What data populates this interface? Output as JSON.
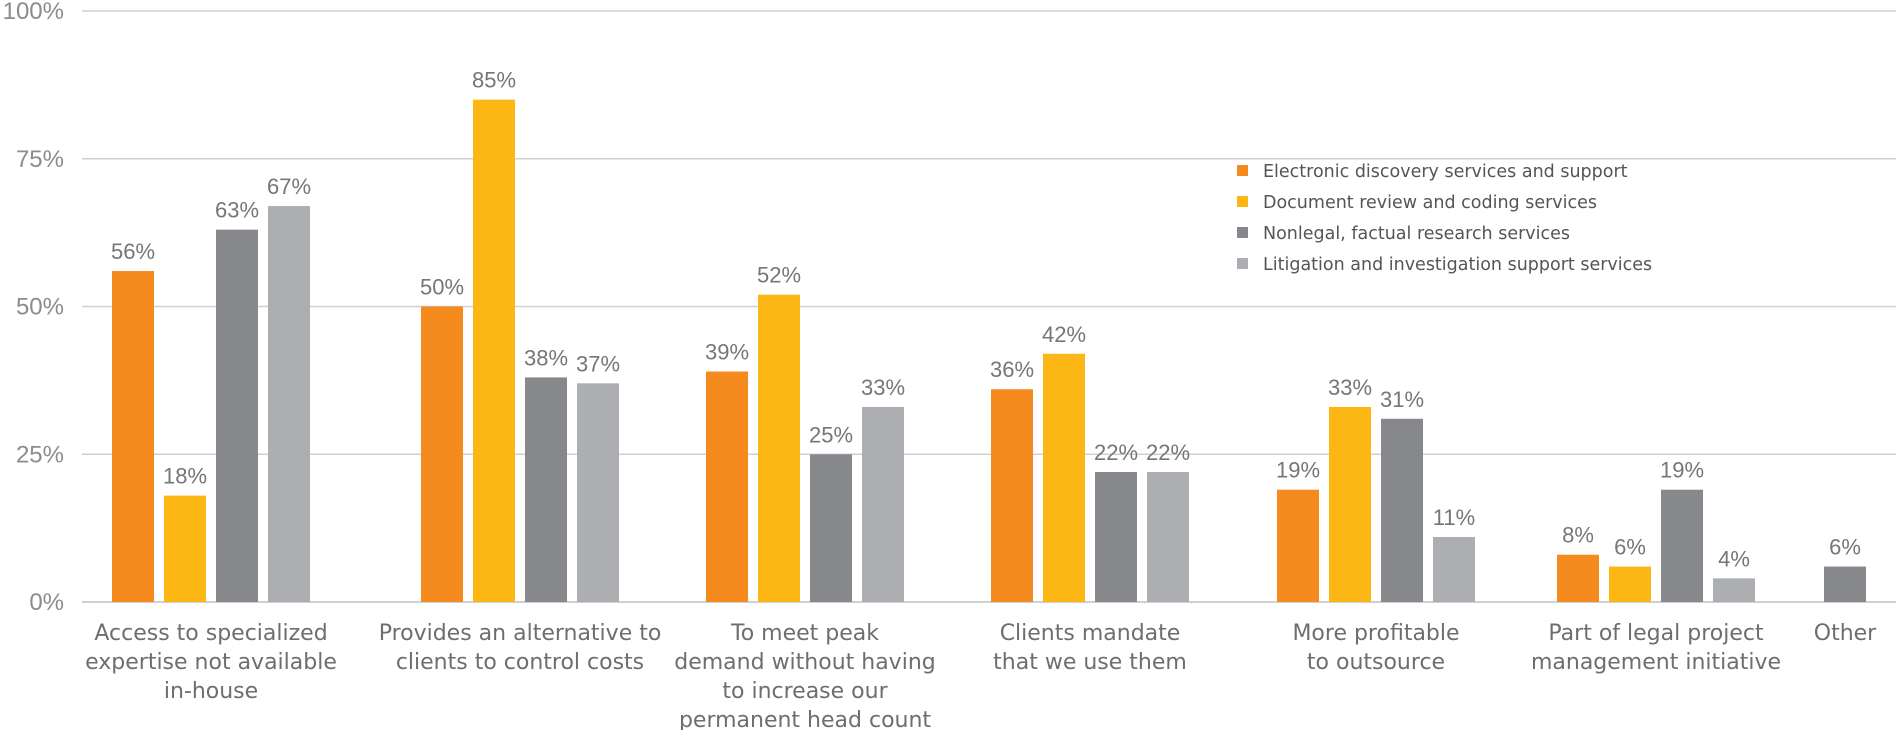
{
  "chart_data": {
    "type": "bar",
    "title": "",
    "xlabel": "",
    "ylabel": "",
    "ylim": [
      0,
      100
    ],
    "yticks": [
      0,
      25,
      50,
      75,
      100
    ],
    "ytick_labels": [
      "0%",
      "25%",
      "50%",
      "75%",
      "100%"
    ],
    "grid": true,
    "legend_position": "top-right",
    "categories": [
      [
        "Access to specialized",
        "expertise not available",
        "in-house"
      ],
      [
        "Provides an alternative to",
        "clients to control costs"
      ],
      [
        "To meet peak",
        "demand without having",
        "to increase our",
        "permanent head count"
      ],
      [
        "Clients mandate",
        "that we use them"
      ],
      [
        "More profitable",
        "to outsource"
      ],
      [
        "Part of legal project",
        "management initiative"
      ],
      [
        "Other"
      ]
    ],
    "series": [
      {
        "name": "Electronic discovery services and support",
        "color": "#f58a1f",
        "values": [
          56,
          50,
          39,
          36,
          19,
          8,
          null
        ]
      },
      {
        "name": "Document review and coding services",
        "color": "#fdb714",
        "values": [
          18,
          85,
          52,
          42,
          33,
          6,
          null
        ]
      },
      {
        "name": "Nonlegal, factual research services",
        "color": "#87888c",
        "values": [
          63,
          38,
          25,
          22,
          31,
          19,
          6
        ]
      },
      {
        "name": "Litigation and investigation support services",
        "color": "#adaeb1",
        "values": [
          67,
          37,
          33,
          22,
          11,
          4,
          null
        ]
      }
    ],
    "value_suffix": "%"
  },
  "colors": {
    "gridline": "#d0d0d0",
    "axis_text": "#8c8c8c",
    "label_text": "#767676"
  }
}
